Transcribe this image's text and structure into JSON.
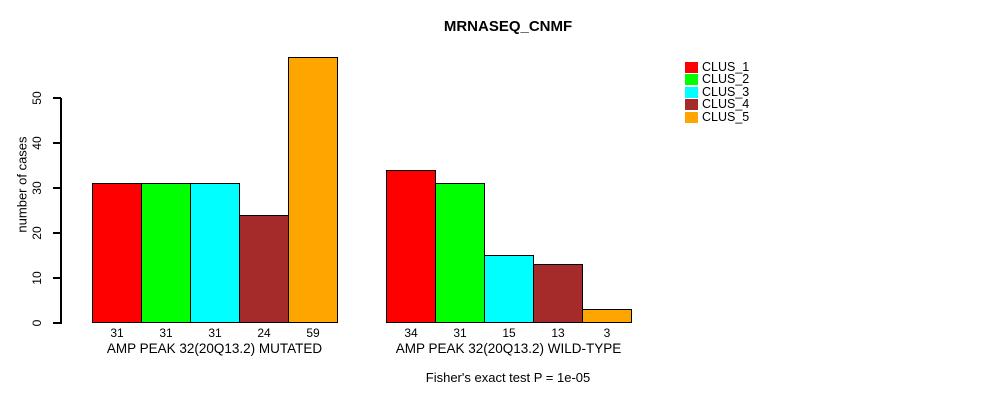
{
  "chart_data": {
    "type": "bar",
    "title": "MRNASEQ_CNMF",
    "xlabel": "",
    "ylabel": "number of cases",
    "ylim": [
      0,
      59
    ],
    "yticks": [
      0,
      10,
      20,
      30,
      40,
      50
    ],
    "grid": false,
    "value_labels_shown": true,
    "legend_position": "right",
    "legend": [
      {
        "label": "CLUS_1",
        "color": "#FF0000"
      },
      {
        "label": "CLUS_2",
        "color": "#00FF00"
      },
      {
        "label": "CLUS_3",
        "color": "#00FFFF"
      },
      {
        "label": "CLUS_4",
        "color": "#A52A2A"
      },
      {
        "label": "CLUS_5",
        "color": "#FFA500"
      }
    ],
    "groups": [
      {
        "label": "AMP PEAK 32(20Q13.2) MUTATED",
        "values": [
          31,
          31,
          31,
          24,
          59
        ]
      },
      {
        "label": "AMP PEAK 32(20Q13.2) WILD-TYPE",
        "values": [
          34,
          31,
          15,
          13,
          3
        ]
      }
    ],
    "annotation": "Fisher's exact test P = 1e-05"
  }
}
